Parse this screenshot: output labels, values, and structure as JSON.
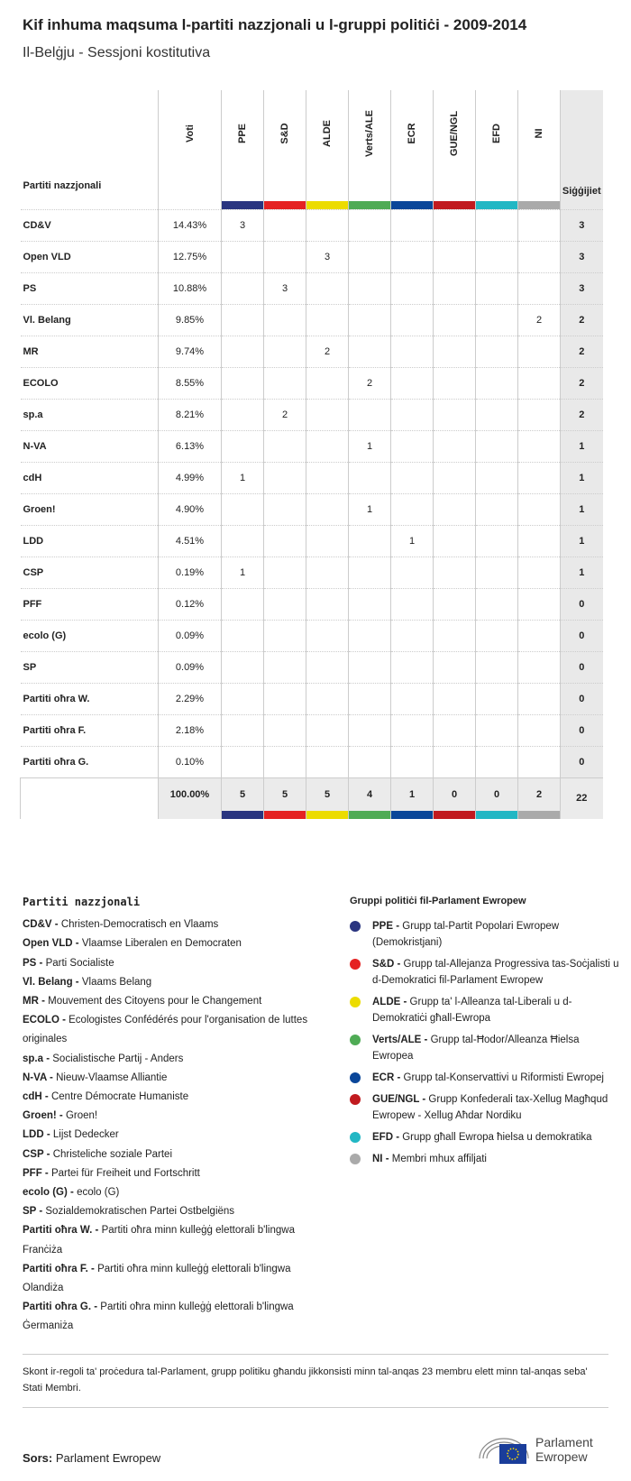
{
  "title": "Kif inhuma maqsuma l-partiti nazzjonali u l-gruppi politiċi - 2009-2014",
  "subtitle": "Il-Belġju - Sessjoni kostitutiva",
  "table": {
    "party_header": "Partiti nazzjonali",
    "votes_header": "Voti",
    "seats_header": "Siġġijiet",
    "groups": [
      {
        "name": "PPE",
        "color": "#2a3580"
      },
      {
        "name": "S&D",
        "color": "#e52222"
      },
      {
        "name": "ALDE",
        "color": "#ecdc00"
      },
      {
        "name": "Verts/ALE",
        "color": "#4fab55"
      },
      {
        "name": "ECR",
        "color": "#0a4699"
      },
      {
        "name": "GUE/NGL",
        "color": "#c11a1f"
      },
      {
        "name": "EFD",
        "color": "#22b7c4"
      },
      {
        "name": "NI",
        "color": "#aaaaaa"
      }
    ],
    "rows": [
      {
        "party": "CD&V",
        "votes": "14.43%",
        "cells": [
          "3",
          "",
          "",
          "",
          "",
          "",
          "",
          ""
        ],
        "seats": "3"
      },
      {
        "party": "Open VLD",
        "votes": "12.75%",
        "cells": [
          "",
          "",
          "3",
          "",
          "",
          "",
          "",
          ""
        ],
        "seats": "3"
      },
      {
        "party": "PS",
        "votes": "10.88%",
        "cells": [
          "",
          "3",
          "",
          "",
          "",
          "",
          "",
          ""
        ],
        "seats": "3"
      },
      {
        "party": "Vl. Belang",
        "votes": "9.85%",
        "cells": [
          "",
          "",
          "",
          "",
          "",
          "",
          "",
          "2"
        ],
        "seats": "2"
      },
      {
        "party": "MR",
        "votes": "9.74%",
        "cells": [
          "",
          "",
          "2",
          "",
          "",
          "",
          "",
          ""
        ],
        "seats": "2"
      },
      {
        "party": "ECOLO",
        "votes": "8.55%",
        "cells": [
          "",
          "",
          "",
          "2",
          "",
          "",
          "",
          ""
        ],
        "seats": "2"
      },
      {
        "party": "sp.a",
        "votes": "8.21%",
        "cells": [
          "",
          "2",
          "",
          "",
          "",
          "",
          "",
          ""
        ],
        "seats": "2"
      },
      {
        "party": "N-VA",
        "votes": "6.13%",
        "cells": [
          "",
          "",
          "",
          "1",
          "",
          "",
          "",
          ""
        ],
        "seats": "1"
      },
      {
        "party": "cdH",
        "votes": "4.99%",
        "cells": [
          "1",
          "",
          "",
          "",
          "",
          "",
          "",
          ""
        ],
        "seats": "1"
      },
      {
        "party": "Groen!",
        "votes": "4.90%",
        "cells": [
          "",
          "",
          "",
          "1",
          "",
          "",
          "",
          ""
        ],
        "seats": "1"
      },
      {
        "party": "LDD",
        "votes": "4.51%",
        "cells": [
          "",
          "",
          "",
          "",
          "1",
          "",
          "",
          ""
        ],
        "seats": "1"
      },
      {
        "party": "CSP",
        "votes": "0.19%",
        "cells": [
          "1",
          "",
          "",
          "",
          "",
          "",
          "",
          ""
        ],
        "seats": "1"
      },
      {
        "party": "PFF",
        "votes": "0.12%",
        "cells": [
          "",
          "",
          "",
          "",
          "",
          "",
          "",
          ""
        ],
        "seats": "0"
      },
      {
        "party": "ecolo (G)",
        "votes": "0.09%",
        "cells": [
          "",
          "",
          "",
          "",
          "",
          "",
          "",
          ""
        ],
        "seats": "0"
      },
      {
        "party": "SP",
        "votes": "0.09%",
        "cells": [
          "",
          "",
          "",
          "",
          "",
          "",
          "",
          ""
        ],
        "seats": "0"
      },
      {
        "party": "Partiti oħra W.",
        "votes": "2.29%",
        "cells": [
          "",
          "",
          "",
          "",
          "",
          "",
          "",
          ""
        ],
        "seats": "0"
      },
      {
        "party": "Partiti oħra F.",
        "votes": "2.18%",
        "cells": [
          "",
          "",
          "",
          "",
          "",
          "",
          "",
          ""
        ],
        "seats": "0"
      },
      {
        "party": "Partiti oħra G.",
        "votes": "0.10%",
        "cells": [
          "",
          "",
          "",
          "",
          "",
          "",
          "",
          ""
        ],
        "seats": "0"
      }
    ],
    "totals": {
      "votes": "100.00%",
      "cells": [
        "5",
        "5",
        "5",
        "4",
        "1",
        "0",
        "0",
        "2"
      ],
      "seats": "22"
    }
  },
  "legend_parties": {
    "title": "Partiti nazzjonali",
    "items": [
      {
        "abbr": "CD&V",
        "name": "Christen-Democratisch en Vlaams"
      },
      {
        "abbr": "Open VLD",
        "name": "Vlaamse Liberalen en Democraten"
      },
      {
        "abbr": "PS",
        "name": "Parti Socialiste"
      },
      {
        "abbr": "Vl. Belang",
        "name": "Vlaams Belang"
      },
      {
        "abbr": "MR",
        "name": "Mouvement des Citoyens pour le Changement"
      },
      {
        "abbr": "ECOLO",
        "name": "Ecologistes Confédérés pour l'organisation de luttes originales"
      },
      {
        "abbr": "sp.a",
        "name": "Socialistische Partij - Anders"
      },
      {
        "abbr": "N-VA",
        "name": "Nieuw-Vlaamse Alliantie"
      },
      {
        "abbr": "cdH",
        "name": "Centre Démocrate Humaniste"
      },
      {
        "abbr": "Groen!",
        "name": "Groen!"
      },
      {
        "abbr": "LDD",
        "name": "Lijst Dedecker"
      },
      {
        "abbr": "CSP",
        "name": "Christeliche soziale Partei"
      },
      {
        "abbr": "PFF",
        "name": "Partei für Freiheit und Fortschritt"
      },
      {
        "abbr": "ecolo (G)",
        "name": "ecolo (G)"
      },
      {
        "abbr": "SP",
        "name": "Sozialdemokratischen Partei Ostbelgiëns"
      },
      {
        "abbr": "Partiti oħra W.",
        "name": "Partiti oħra minn kulleġġ elettorali b'lingwa Franċiża"
      },
      {
        "abbr": "Partiti oħra F.",
        "name": "Partiti oħra minn kulleġġ elettorali b'lingwa Olandiża"
      },
      {
        "abbr": "Partiti oħra G.",
        "name": "Partiti oħra minn kulleġġ elettorali b'lingwa Ġermaniża"
      }
    ]
  },
  "legend_groups": {
    "title": "Gruppi politiċi fil-Parlament Ewropew",
    "items": [
      {
        "abbr": "PPE",
        "name": "Grupp tal-Partit Popolari Ewropew (Demokristjani)"
      },
      {
        "abbr": "S&D",
        "name": "Grupp tal-Allejanza Progressiva tas-Soċjalisti u d-Demokratici fil-Parlament Ewropew"
      },
      {
        "abbr": "ALDE",
        "name": "Grupp ta' l-Alleanza tal-Liberali u d-Demokratiċi għall-Ewropa"
      },
      {
        "abbr": "Verts/ALE",
        "name": "Grupp tal-Ħodor/Alleanza Ħielsa Ewropea"
      },
      {
        "abbr": "ECR",
        "name": "Grupp tal-Konservattivi u Riformisti Ewropej"
      },
      {
        "abbr": "GUE/NGL",
        "name": "Grupp Konfederali tax-Xellug Magħqud Ewropew - Xellug Aħdar Nordiku"
      },
      {
        "abbr": "EFD",
        "name": "Grupp għall Ewropa ħielsa u demokratika"
      },
      {
        "abbr": "NI",
        "name": "Membri mhux affiljati"
      }
    ]
  },
  "footnote": "Skont ir-regoli ta' proċedura tal-Parlament, grupp politiku għandu jikkonsisti minn tal-anqas 23 membru elett minn tal-anqas seba' Stati Membri.",
  "source_label": "Sors:",
  "source": "Parlament Ewropew",
  "logo_text": "Parlament Ewropew"
}
